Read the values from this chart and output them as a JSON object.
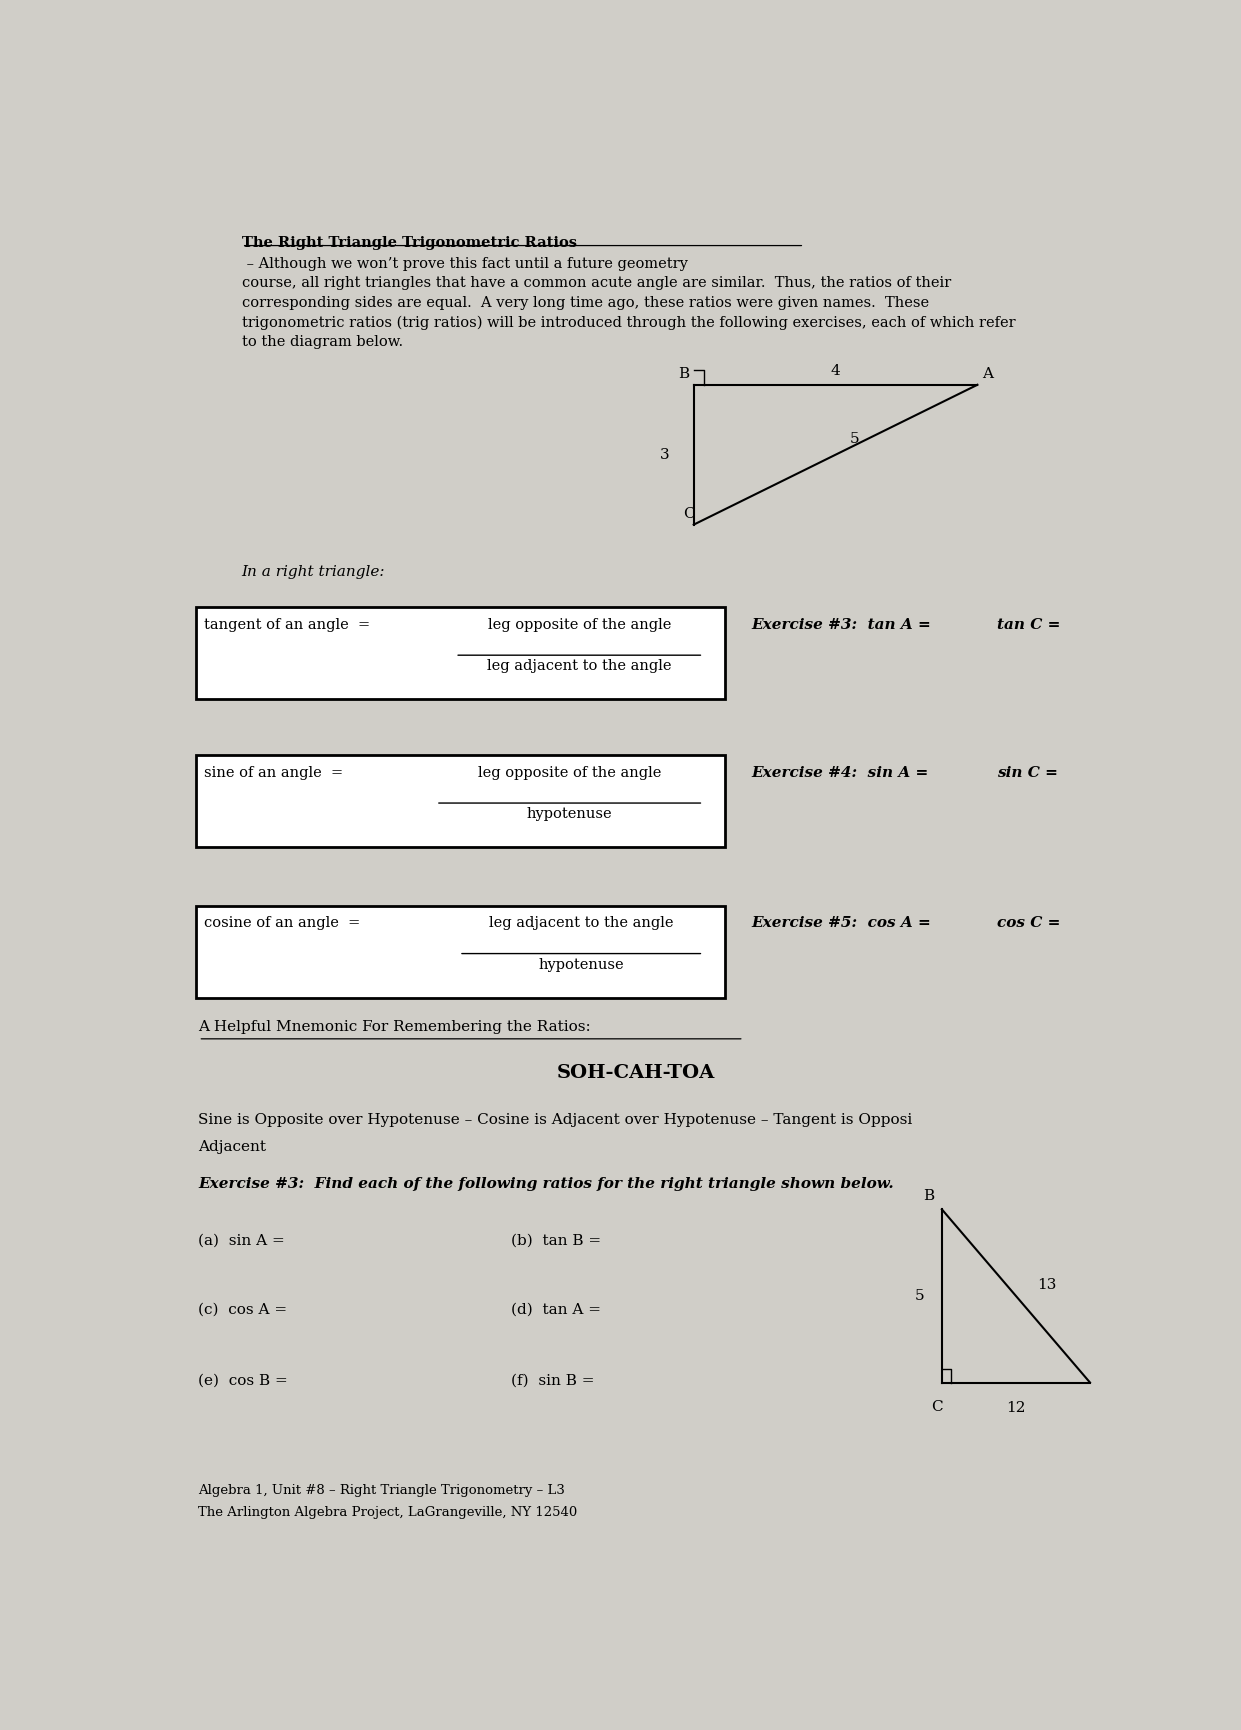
{
  "bg_color": "#d0cec8",
  "title": "The Right Triangle Trigonometric Ratios",
  "intro": " – Although we won’t prove this fact until a future geometry\ncourse, all right triangles that have a common acute angle are similar.  Thus, the ratios of their\ncorresponding sides are equal.  A very long time ago, these ratios were given names.  These\ntrigonometric ratios (trig ratios) will be introduced through the following exercises, each of which refer\nto the diagram below.",
  "in_right_triangle": "In a right triangle:",
  "tan_left": "tangent of an angle  =",
  "tan_num": "leg opposite of the angle",
  "tan_den": "leg adjacent to the angle",
  "ex3_tan": "Exercise #3:  tan A =",
  "ex3_tanC": "tan C =",
  "sin_left": "sine of an angle  =",
  "sin_num": "leg opposite of the angle",
  "sin_den": "hypotenuse",
  "ex4_sin": "Exercise #4:  sin A =",
  "ex4_sinC": "sin C =",
  "cos_left": "cosine of an angle  =",
  "cos_num": "leg adjacent to the angle",
  "cos_den": "hypotenuse",
  "ex5_cos": "Exercise #5:  cos A =",
  "ex5_cosC": "cos C =",
  "mnem_header": "A Helpful Mnemonic For Remembering the Ratios:",
  "soh_cah_toa": "SOH-CAH-TOA",
  "mnem_body1": "Sine is Opposite over Hypotenuse – Cosine is Adjacent over Hypotenuse – Tangent is Opposi",
  "mnem_body2": "Adjacent",
  "ex3_bottom": "Exercise #3:  Find each of the following ratios for the right triangle shown below.",
  "parts": [
    [
      "(a)  sin A =",
      "(b)  tan B ="
    ],
    [
      "(c)  cos A =",
      "(d)  tan A ="
    ],
    [
      "(e)  cos B =",
      "(f)  sin B ="
    ]
  ],
  "footer1": "Algebra 1, Unit #8 – Right Triangle Trigonometry – L3",
  "footer2": "The Arlington Algebra Project, LaGrangeville, NY 12540"
}
